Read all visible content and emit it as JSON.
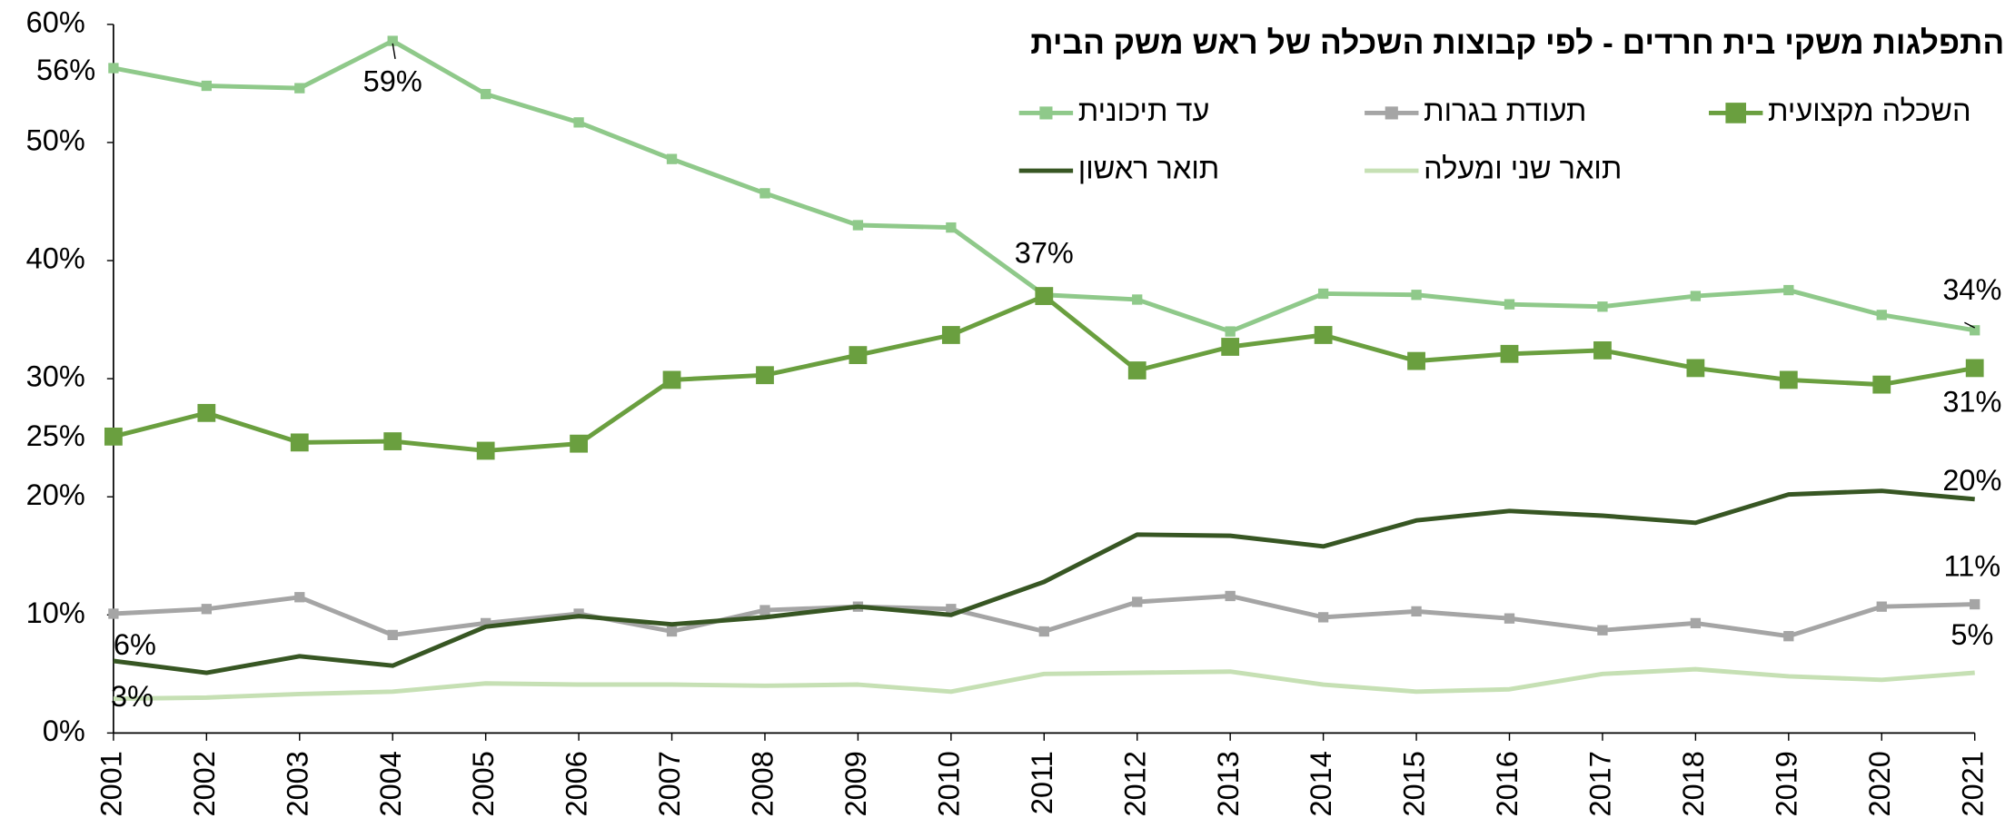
{
  "chart_data": {
    "type": "line",
    "title": "התפלגות משקי בית חרדים - לפי קבוצות השכלה של ראש משק הבית",
    "categories": [
      "2001",
      "2002",
      "2003",
      "2004",
      "2005",
      "2006",
      "2007",
      "2008",
      "2009",
      "2010",
      "2011",
      "2012",
      "2013",
      "2014",
      "2015",
      "2016",
      "2017",
      "2018",
      "2019",
      "2020",
      "2021"
    ],
    "series": [
      {
        "name": "עד תיכונית",
        "color": "#8fc98a",
        "marker": "square",
        "values": [
          56.3,
          54.8,
          54.6,
          58.6,
          54.1,
          51.7,
          48.6,
          45.7,
          43.0,
          42.8,
          37.1,
          36.7,
          34.0,
          37.2,
          37.1,
          36.3,
          36.1,
          37.0,
          37.5,
          35.4,
          34.1
        ],
        "value_labels": [
          "56%",
          null,
          null,
          "59%",
          null,
          null,
          null,
          null,
          null,
          null,
          "37%",
          null,
          null,
          null,
          null,
          null,
          null,
          null,
          null,
          null,
          "34%"
        ]
      },
      {
        "name": "תעודת בגרות",
        "color": "#a5a5a5",
        "marker": "square",
        "values": [
          10.1,
          10.5,
          11.5,
          8.3,
          9.3,
          10.1,
          8.6,
          10.4,
          10.7,
          10.5,
          8.6,
          11.1,
          11.6,
          9.8,
          10.3,
          9.7,
          8.7,
          9.3,
          8.2,
          10.7,
          10.9
        ],
        "value_labels": [
          null,
          null,
          null,
          null,
          null,
          null,
          null,
          null,
          null,
          null,
          null,
          null,
          null,
          null,
          null,
          null,
          null,
          null,
          null,
          null,
          "11%"
        ]
      },
      {
        "name": "השכלה מקצועית",
        "color": "#6a9f3f",
        "marker": "square",
        "values": [
          25.1,
          27.1,
          24.6,
          24.7,
          23.9,
          24.5,
          29.9,
          30.3,
          32.0,
          33.7,
          37.0,
          30.7,
          32.7,
          33.7,
          31.5,
          32.1,
          32.4,
          30.9,
          29.9,
          29.5,
          30.9
        ],
        "value_labels": [
          "25%",
          null,
          null,
          null,
          null,
          null,
          null,
          null,
          null,
          null,
          null,
          null,
          null,
          null,
          null,
          null,
          null,
          null,
          null,
          null,
          "31%"
        ]
      },
      {
        "name": "תואר ראשון",
        "color": "#375623",
        "values": [
          6.1,
          5.1,
          6.5,
          5.7,
          9.0,
          9.9,
          9.2,
          9.8,
          10.7,
          10.0,
          12.8,
          16.8,
          16.7,
          15.8,
          18.0,
          18.8,
          18.4,
          17.8,
          20.2,
          20.5,
          19.8
        ],
        "value_labels": [
          "6%",
          null,
          null,
          null,
          null,
          null,
          null,
          null,
          null,
          null,
          null,
          null,
          null,
          null,
          null,
          null,
          null,
          null,
          null,
          null,
          "20%"
        ]
      },
      {
        "name": "תואר שני ומעלה",
        "color": "#c6e0b4",
        "values": [
          2.9,
          3.0,
          3.3,
          3.5,
          4.2,
          4.1,
          4.1,
          4.0,
          4.1,
          3.5,
          5.0,
          5.1,
          5.2,
          4.1,
          3.5,
          3.7,
          5.0,
          5.4,
          4.8,
          4.5,
          5.1
        ],
        "value_labels": [
          "3%",
          null,
          null,
          null,
          null,
          null,
          null,
          null,
          null,
          null,
          null,
          null,
          null,
          null,
          null,
          null,
          null,
          null,
          null,
          null,
          "5%"
        ]
      }
    ],
    "ylim": [
      0,
      60
    ],
    "yticks": [
      {
        "value": 0,
        "label": "0%"
      },
      {
        "value": 10,
        "label": "10%"
      },
      {
        "value": 20,
        "label": "20%"
      },
      {
        "value": 30,
        "label": "30%"
      },
      {
        "value": 40,
        "label": "40%"
      },
      {
        "value": 50,
        "label": "50%"
      },
      {
        "value": 60,
        "label": "60%"
      }
    ],
    "grid": false
  }
}
